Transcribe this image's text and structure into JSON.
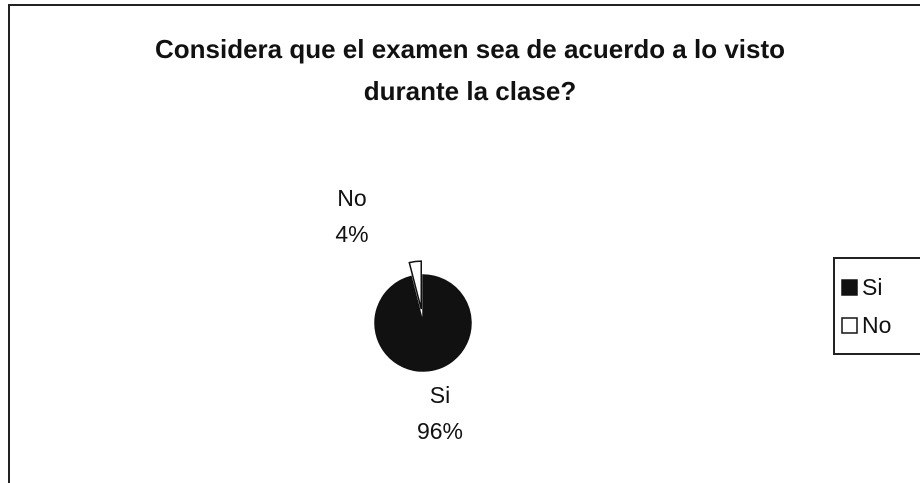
{
  "chart_data": {
    "type": "pie",
    "title": "Considera que el examen sea de acuerdo a lo visto durante la clase?",
    "categories": [
      "Si",
      "No"
    ],
    "values": [
      96,
      4
    ],
    "value_labels": [
      "96%",
      "4%"
    ],
    "colors": [
      "#111111",
      "#ffffff"
    ],
    "legend": "right"
  }
}
